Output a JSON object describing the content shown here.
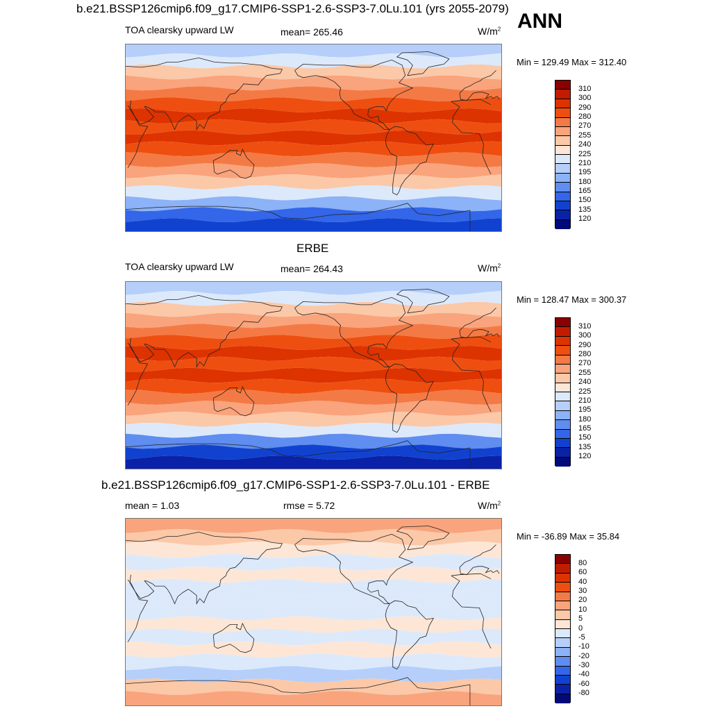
{
  "main_title": "b.e21.BSSP126cmip6.f09_g17.CMIP6-SSP1-2.6-SSP3-7.0Lu.101 (yrs 2055-2079)",
  "season": "ANN",
  "panels": [
    {
      "heading": "",
      "left_label": "TOA clearsky upward LW",
      "center_label": "mean= 265.46",
      "units": "W/m",
      "units_sup": "2",
      "minmax": "Min = 129.49 Max = 312.40"
    },
    {
      "heading": "ERBE",
      "left_label": "TOA clearsky upward LW",
      "center_label": "mean= 264.43",
      "units": "W/m",
      "units_sup": "2",
      "minmax": "Min = 128.47 Max = 300.37"
    },
    {
      "heading": "b.e21.BSSP126cmip6.f09_g17.CMIP6-SSP1-2.6-SSP3-7.0Lu.101 - ERBE",
      "left_label": "mean =   1.03",
      "center_label": "rmse =   5.72",
      "units": "W/m",
      "units_sup": "2",
      "minmax": "Min = -36.89 Max =  35.84"
    }
  ],
  "chart_data": [
    {
      "type": "heatmap",
      "title": "TOA clearsky upward LW",
      "units": "W/m2",
      "mean": 265.46,
      "min": 129.49,
      "max": 312.4,
      "colorbar_levels": [
        "310",
        "300",
        "290",
        "280",
        "270",
        "255",
        "240",
        "225",
        "210",
        "195",
        "180",
        "165",
        "150",
        "135",
        "120"
      ],
      "colorbar_colors": [
        "#8b0000",
        "#c21c00",
        "#dd3300",
        "#ee4f10",
        "#f47a45",
        "#f9a47c",
        "#fbc8a8",
        "#fde6d6",
        "#dce9fb",
        "#b5cffa",
        "#8cb2f7",
        "#5f8df0",
        "#3366e8",
        "#1142cf",
        "#0a22a8",
        "#020a7a"
      ],
      "band_colors_north_to_south": [
        "#b5cffa",
        "#dce9fb",
        "#fbc8a8",
        "#f9a47c",
        "#f47a45",
        "#ee4f10",
        "#dd3300",
        "#ee4f10",
        "#dd3300",
        "#ee4f10",
        "#f47a45",
        "#f9a47c",
        "#fbc8a8",
        "#dce9fb",
        "#8cb2f7",
        "#3366e8",
        "#1142cf"
      ]
    },
    {
      "type": "heatmap",
      "title": "TOA clearsky upward LW",
      "units": "W/m2",
      "mean": 264.43,
      "min": 128.47,
      "max": 300.37,
      "colorbar_levels": [
        "310",
        "300",
        "290",
        "280",
        "270",
        "255",
        "240",
        "225",
        "210",
        "195",
        "180",
        "165",
        "150",
        "135",
        "120"
      ],
      "colorbar_colors": [
        "#8b0000",
        "#c21c00",
        "#dd3300",
        "#ee4f10",
        "#f47a45",
        "#f9a47c",
        "#fbc8a8",
        "#fde6d6",
        "#dce9fb",
        "#b5cffa",
        "#8cb2f7",
        "#5f8df0",
        "#3366e8",
        "#1142cf",
        "#0a22a8",
        "#020a7a"
      ],
      "band_colors_north_to_south": [
        "#b5cffa",
        "#dce9fb",
        "#fbc8a8",
        "#f9a47c",
        "#f47a45",
        "#ee4f10",
        "#dd3300",
        "#ee4f10",
        "#dd3300",
        "#ee4f10",
        "#f47a45",
        "#f9a47c",
        "#fbc8a8",
        "#dce9fb",
        "#5f8df0",
        "#1142cf",
        "#0a22a8"
      ]
    },
    {
      "type": "heatmap",
      "title": "",
      "units": "W/m2",
      "mean": 1.03,
      "rmse": 5.72,
      "min": -36.89,
      "max": 35.84,
      "colorbar_levels": [
        "80",
        "60",
        "40",
        "30",
        "20",
        "10",
        "5",
        "0",
        "-5",
        "-10",
        "-20",
        "-30",
        "-40",
        "-60",
        "-80"
      ],
      "colorbar_colors": [
        "#8b0000",
        "#c21c00",
        "#dd3300",
        "#ee4f10",
        "#f47a45",
        "#f9a47c",
        "#fbc8a8",
        "#fde6d6",
        "#dce9fb",
        "#b5cffa",
        "#8cb2f7",
        "#5f8df0",
        "#3366e8",
        "#1142cf",
        "#0a22a8",
        "#020a7a"
      ],
      "band_colors_north_to_south": [
        "#f9a47c",
        "#fbc8a8",
        "#fde6d6",
        "#dce9fb",
        "#fde6d6",
        "#dce9fb",
        "#dce9fb",
        "#dce9fb",
        "#fde6d6",
        "#dce9fb",
        "#fde6d6",
        "#dce9fb",
        "#b5cffa",
        "#fbc8a8",
        "#f9a47c"
      ]
    }
  ]
}
